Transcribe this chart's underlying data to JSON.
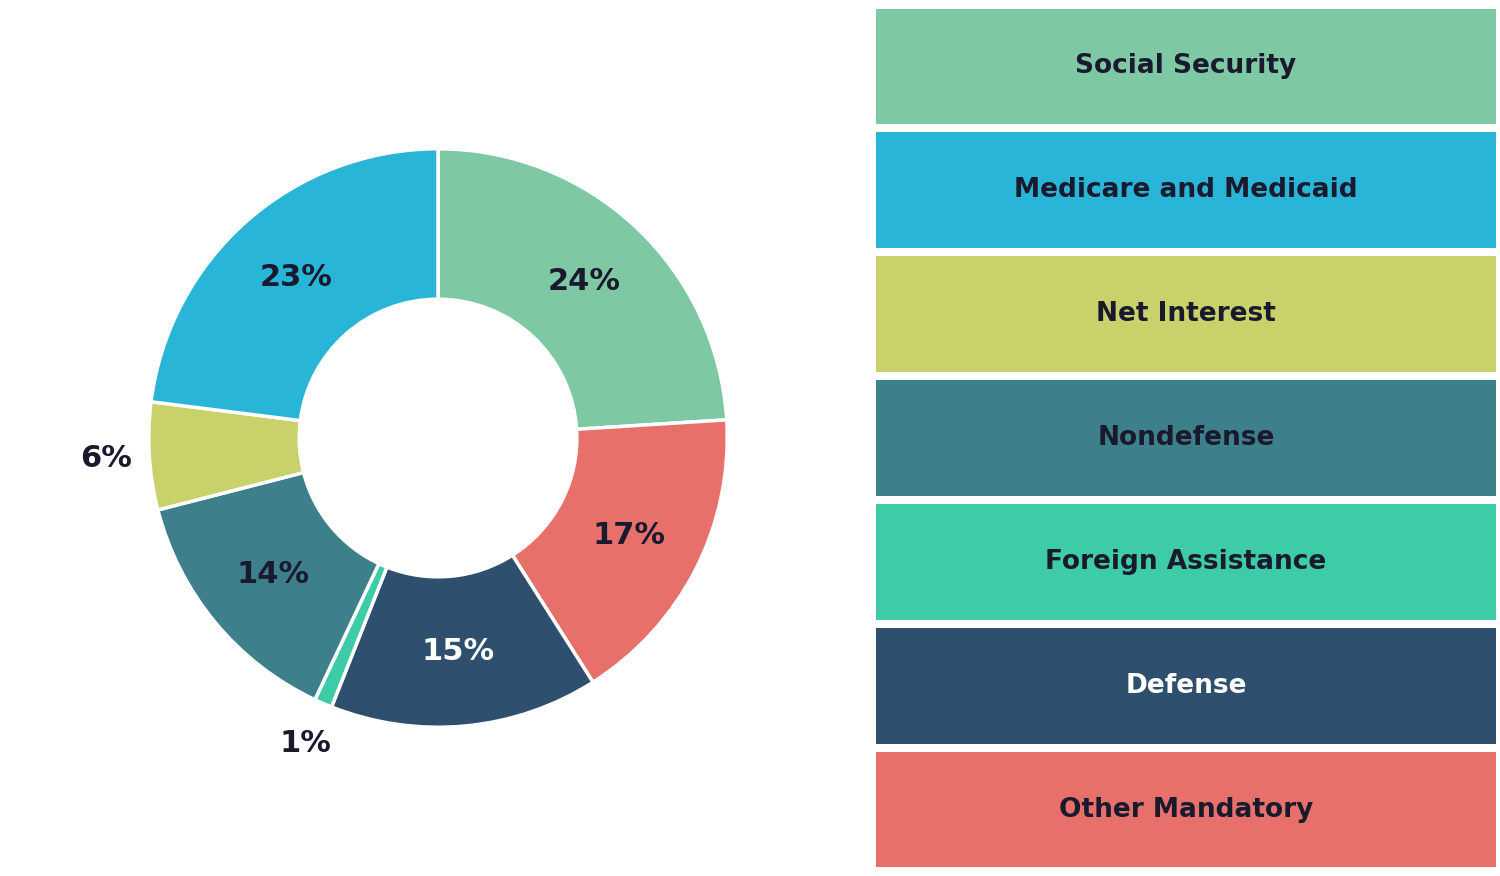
{
  "labels": [
    "Social Security",
    "Other Mandatory",
    "Defense",
    "Foreign Assistance",
    "Nondefense",
    "Net Interest",
    "Medicare and Medicaid"
  ],
  "values": [
    24,
    17,
    15,
    1,
    14,
    6,
    23
  ],
  "colors": [
    "#7ec8a4",
    "#e8706a",
    "#2e4f6e",
    "#3ecba8",
    "#3d7f8a",
    "#c8d16a",
    "#29b5d8"
  ],
  "pct_labels": [
    "24%",
    "17%",
    "15%",
    "1%",
    "14%",
    "6%",
    "23%"
  ],
  "pct_outside": [
    false,
    false,
    false,
    true,
    false,
    true,
    false
  ],
  "legend_labels": [
    "Social Security",
    "Medicare and Medicaid",
    "Net Interest",
    "Nondefense",
    "Foreign Assistance",
    "Defense",
    "Other Mandatory"
  ],
  "legend_colors": [
    "#7ec8a4",
    "#29b5d8",
    "#c8d16a",
    "#3d7f8a",
    "#3ecba8",
    "#2e4f6e",
    "#e8706a"
  ],
  "bg_color": "#ffffff",
  "text_color": "#1a1a2e",
  "label_fontsize": 22,
  "legend_fontsize": 19,
  "startangle": 90,
  "donut_width": 0.52
}
